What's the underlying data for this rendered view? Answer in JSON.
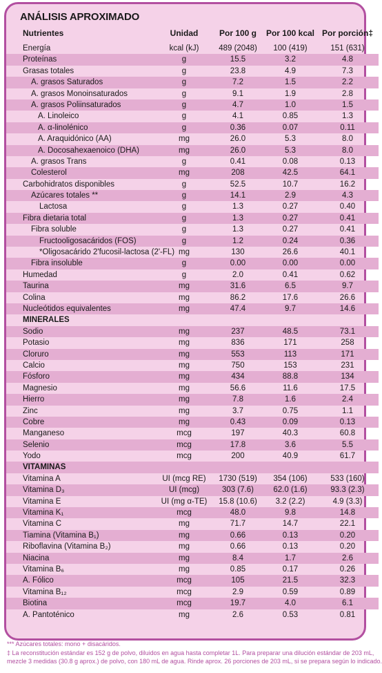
{
  "title": "ANÁLISIS APROXIMADO",
  "headers": {
    "name": "Nutrientes",
    "unit": "Unidad",
    "p100": "Por 100 g",
    "kcal": "Por 100  kcal",
    "portion": "Por porción‡"
  },
  "rows": [
    {
      "name": "Energía",
      "unit": "kcal (kJ)",
      "p100": "489 (2048)",
      "kcal": "100 (419)",
      "portion": "151 (631)",
      "indent": 0
    },
    {
      "name": "Proteínas",
      "unit": "g",
      "p100": "15.5",
      "kcal": "3.2",
      "portion": "4.8",
      "indent": 0
    },
    {
      "name": "Grasas totales",
      "unit": "g",
      "p100": "23.8",
      "kcal": "4.9",
      "portion": "7.3",
      "indent": 0
    },
    {
      "name": "A. grasos Saturados",
      "unit": "g",
      "p100": "7.2",
      "kcal": "1.5",
      "portion": "2.2",
      "indent": 1
    },
    {
      "name": "A. grasos Monoinsaturados",
      "unit": "g",
      "p100": "9.1",
      "kcal": "1.9",
      "portion": "2.8",
      "indent": 1
    },
    {
      "name": "A. grasos Poliinsaturados",
      "unit": "g",
      "p100": "4.7",
      "kcal": "1.0",
      "portion": "1.5",
      "indent": 1
    },
    {
      "name": "A. Linoleico",
      "unit": "g",
      "p100": "4.1",
      "kcal": "0.85",
      "portion": "1.3",
      "indent": 2
    },
    {
      "name": "A. α-linolénico",
      "unit": "g",
      "p100": "0.36",
      "kcal": "0.07",
      "portion": "0.11",
      "indent": 2
    },
    {
      "name": "A. Araquidónico (AA)",
      "unit": "mg",
      "p100": "26.0",
      "kcal": "5.3",
      "portion": "8.0",
      "indent": 2
    },
    {
      "name": "A. Docosahexaenoico (DHA)",
      "unit": "mg",
      "p100": "26.0",
      "kcal": "5.3",
      "portion": "8.0",
      "indent": 2
    },
    {
      "name": "A. grasos Trans",
      "unit": "g",
      "p100": "0.41",
      "kcal": "0.08",
      "portion": "0.13",
      "indent": 1
    },
    {
      "name": "Colesterol",
      "unit": "mg",
      "p100": "208",
      "kcal": "42.5",
      "portion": "64.1",
      "indent": 1
    },
    {
      "name": "Carbohidratos disponibles",
      "unit": "g",
      "p100": "52.5",
      "kcal": "10.7",
      "portion": "16.2",
      "indent": 0
    },
    {
      "name": "Azúcares totales **",
      "unit": "g",
      "p100": "14.1",
      "kcal": "2.9",
      "portion": "4.3",
      "indent": 1
    },
    {
      "name": "Lactosa",
      "unit": "g",
      "p100": "1.3",
      "kcal": "0.27",
      "portion": "0.40",
      "indent": 3
    },
    {
      "name": "Fibra dietaria total",
      "unit": "g",
      "p100": "1.3",
      "kcal": "0.27",
      "portion": "0.41",
      "indent": 0
    },
    {
      "name": "Fibra soluble",
      "unit": "g",
      "p100": "1.3",
      "kcal": "0.27",
      "portion": "0.41",
      "indent": 1
    },
    {
      "name": "Fructooligosacáridos (FOS)",
      "unit": "g",
      "p100": "1.2",
      "kcal": "0.24",
      "portion": "0.36",
      "indent": 3
    },
    {
      "name": "*Oligosacárido 2'fucosil-lactosa (2'-FL)",
      "unit": "mg",
      "p100": "130",
      "kcal": "26.6",
      "portion": "40.1",
      "indent": 3
    },
    {
      "name": "Fibra insoluble",
      "unit": "g",
      "p100": "0.00",
      "kcal": "0.00",
      "portion": "0.00",
      "indent": 1
    },
    {
      "name": "Humedad",
      "unit": "g",
      "p100": "2.0",
      "kcal": "0.41",
      "portion": "0.62",
      "indent": 0
    },
    {
      "name": "Taurina",
      "unit": "mg",
      "p100": "31.6",
      "kcal": "6.5",
      "portion": "9.7",
      "indent": 0
    },
    {
      "name": "Colina",
      "unit": "mg",
      "p100": "86.2",
      "kcal": "17.6",
      "portion": "26.6",
      "indent": 0
    },
    {
      "name": "Nucleótidos equivalentes",
      "unit": "mg",
      "p100": "47.4",
      "kcal": "9.7",
      "portion": "14.6",
      "indent": 0
    },
    {
      "name": "MINERALES",
      "section": true
    },
    {
      "name": "Sodio",
      "unit": "mg",
      "p100": "237",
      "kcal": "48.5",
      "portion": "73.1",
      "indent": 0
    },
    {
      "name": "Potasio",
      "unit": "mg",
      "p100": "836",
      "kcal": "171",
      "portion": "258",
      "indent": 0
    },
    {
      "name": "Cloruro",
      "unit": "mg",
      "p100": "553",
      "kcal": "113",
      "portion": "171",
      "indent": 0
    },
    {
      "name": "Calcio",
      "unit": "mg",
      "p100": "750",
      "kcal": "153",
      "portion": "231",
      "indent": 0
    },
    {
      "name": "Fósforo",
      "unit": "mg",
      "p100": "434",
      "kcal": "88.8",
      "portion": "134",
      "indent": 0
    },
    {
      "name": "Magnesio",
      "unit": "mg",
      "p100": "56.6",
      "kcal": "11.6",
      "portion": "17.5",
      "indent": 0
    },
    {
      "name": "Hierro",
      "unit": "mg",
      "p100": "7.8",
      "kcal": "1.6",
      "portion": "2.4",
      "indent": 0
    },
    {
      "name": "Zinc",
      "unit": "mg",
      "p100": "3.7",
      "kcal": "0.75",
      "portion": "1.1",
      "indent": 0
    },
    {
      "name": "Cobre",
      "unit": "mg",
      "p100": "0.43",
      "kcal": "0.09",
      "portion": "0.13",
      "indent": 0
    },
    {
      "name": "Manganeso",
      "unit": "mcg",
      "p100": "197",
      "kcal": "40.3",
      "portion": "60.8",
      "indent": 0
    },
    {
      "name": "Selenio",
      "unit": "mcg",
      "p100": "17.8",
      "kcal": "3.6",
      "portion": "5.5",
      "indent": 0
    },
    {
      "name": "Yodo",
      "unit": "mcg",
      "p100": "200",
      "kcal": "40.9",
      "portion": "61.7",
      "indent": 0
    },
    {
      "name": "VITAMINAS",
      "section": true
    },
    {
      "name": "Vitamina A",
      "unit": "UI (mcg RE)",
      "p100": "1730 (519)",
      "kcal": "354 (106)",
      "portion": "533 (160)",
      "indent": 0
    },
    {
      "name": "Vitamina D₃",
      "unit": "UI (mcg)",
      "p100": "303 (7.6)",
      "kcal": "62.0 (1.6)",
      "portion": "93.3 (2.3)",
      "indent": 0
    },
    {
      "name": "Vitamina E",
      "unit": "UI (mg α-TE)",
      "p100": "15.8 (10.6)",
      "kcal": "3.2 (2.2)",
      "portion": "4.9 (3.3)",
      "indent": 0
    },
    {
      "name": "Vitamina K₁",
      "unit": "mcg",
      "p100": "48.0",
      "kcal": "9.8",
      "portion": "14.8",
      "indent": 0
    },
    {
      "name": "Vitamina C",
      "unit": "mg",
      "p100": "71.7",
      "kcal": "14.7",
      "portion": "22.1",
      "indent": 0
    },
    {
      "name": "Tiamina (Vitamina B₁)",
      "unit": "mg",
      "p100": "0.66",
      "kcal": "0.13",
      "portion": "0.20",
      "indent": 0
    },
    {
      "name": "Riboflavina (Vitamina B₂)",
      "unit": "mg",
      "p100": "0.66",
      "kcal": "0.13",
      "portion": "0.20",
      "indent": 0
    },
    {
      "name": "Niacina",
      "unit": "mg",
      "p100": "8.4",
      "kcal": "1.7",
      "portion": "2.6",
      "indent": 0
    },
    {
      "name": "Vitamina B₆",
      "unit": "mg",
      "p100": "0.85",
      "kcal": "0.17",
      "portion": "0.26",
      "indent": 0
    },
    {
      "name": "A. Fólico",
      "unit": "mcg",
      "p100": "105",
      "kcal": "21.5",
      "portion": "32.3",
      "indent": 0
    },
    {
      "name": "Vitamina B₁₂",
      "unit": "mcg",
      "p100": "2.9",
      "kcal": "0.59",
      "portion": "0.89",
      "indent": 0
    },
    {
      "name": "Biotina",
      "unit": "mcg",
      "p100": "19.7",
      "kcal": "4.0",
      "portion": "6.1",
      "indent": 0
    },
    {
      "name": "A. Pantoténico",
      "unit": "mg",
      "p100": "2.6",
      "kcal": "0.53",
      "portion": "0.81",
      "indent": 0
    }
  ],
  "notes": [
    "*** Azúcares totales: mono + disacáridos.",
    "‡ La reconstitución estándar es 152 g de polvo, diluidos en agua hasta completar 1L. Para preparar una dilución estándar de 203 mL,",
    "mezcle 3 medidas (30.8 g aprox.) de polvo, con 180 mL de agua. Rinde aprox. 26 porciones de 203 mL, si se prepara según lo indicado."
  ]
}
